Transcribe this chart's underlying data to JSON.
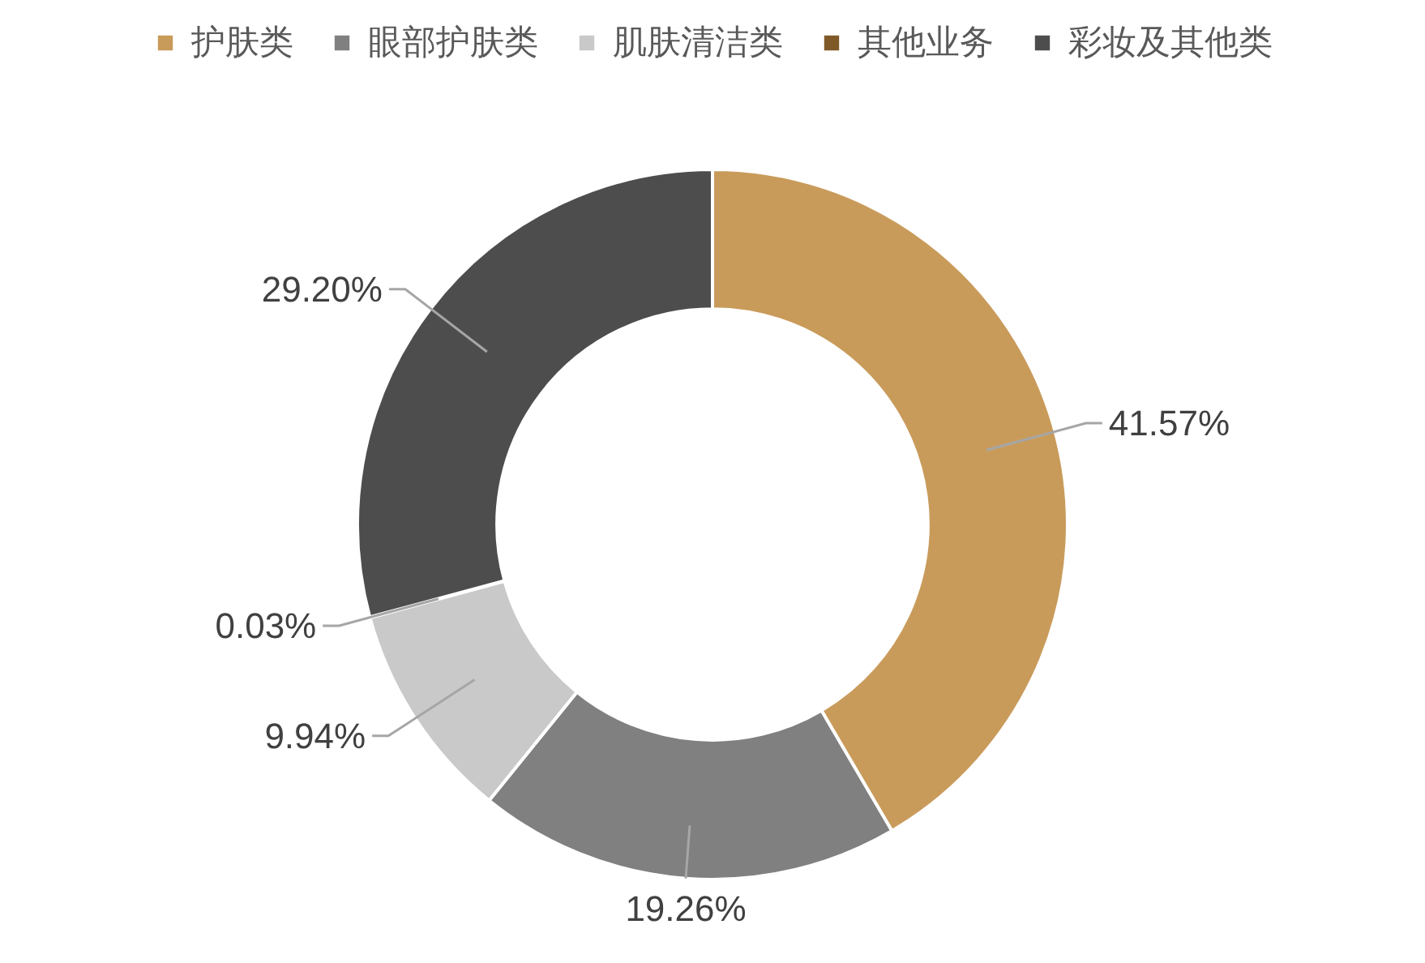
{
  "chart_data": {
    "type": "donut",
    "categories": [
      "护肤类",
      "眼部护肤类",
      "肌肤清洁类",
      "其他业务",
      "彩妆及其他类"
    ],
    "values": [
      41.57,
      19.26,
      9.94,
      0.03,
      29.2
    ],
    "colors": [
      "#c99b5b",
      "#808080",
      "#c9c9c9",
      "#7f5a28",
      "#4d4d4d"
    ],
    "value_labels": [
      "41.57%",
      "19.26%",
      "9.94%",
      "0.03%",
      "29.20%"
    ],
    "legend": "top"
  }
}
